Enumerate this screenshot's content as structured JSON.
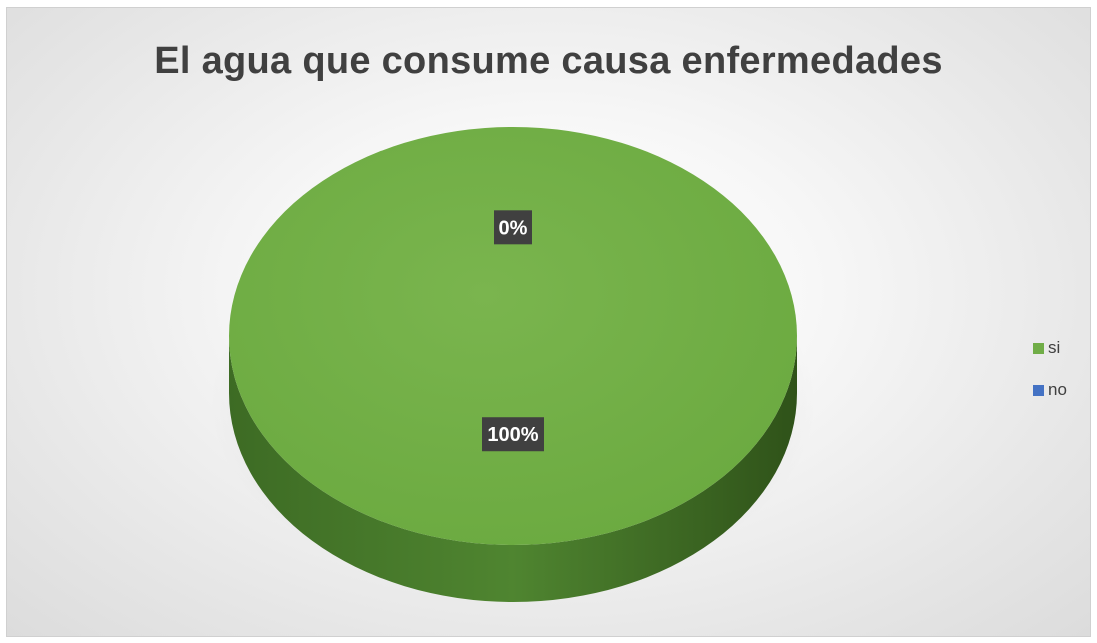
{
  "chart_data": {
    "type": "pie",
    "title": "El agua que consume causa enfermedades",
    "categories": [
      "si",
      "no"
    ],
    "values": [
      100,
      0
    ],
    "data_labels": [
      "100%",
      "0%"
    ],
    "colors": {
      "si": "#70ad47",
      "no": "#4472c4",
      "label_background": "#404040",
      "label_text": "#ffffff"
    },
    "legend_placement": "right",
    "style": "3d-pie"
  }
}
